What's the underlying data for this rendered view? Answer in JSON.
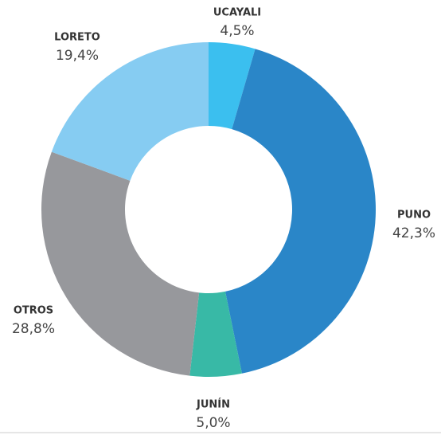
{
  "chart_data": {
    "type": "donut",
    "categories": [
      "UCAYALI",
      "PUNO",
      "JUNÍN",
      "OTROS",
      "LORETO"
    ],
    "values": [
      4.5,
      42.3,
      5.0,
      28.8,
      19.4
    ],
    "value_labels": [
      "4,5%",
      "42,3%",
      "5,0%",
      "28,8%",
      "19,4%"
    ],
    "colors": [
      "#3bbfef",
      "#2a86c8",
      "#38b9a6",
      "#97989c",
      "#86ccf2"
    ]
  }
}
